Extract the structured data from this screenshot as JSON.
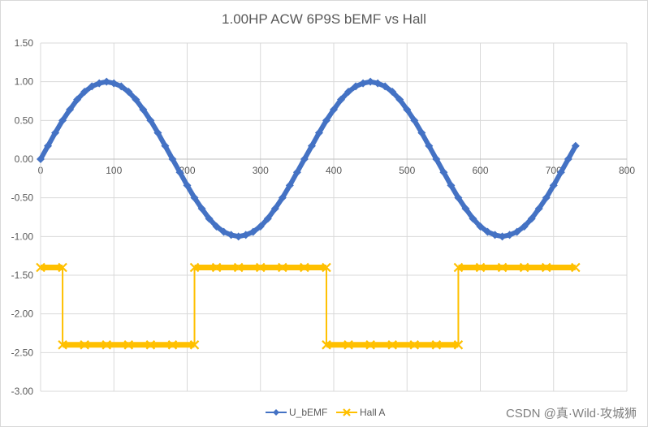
{
  "chart_data": {
    "type": "scatter",
    "title": "1.00HP ACW 6P9S bEMF vs Hall",
    "xlabel": "",
    "ylabel": "",
    "xlim": [
      0,
      800
    ],
    "ylim": [
      -3.0,
      1.5
    ],
    "x_ticks": [
      0,
      100,
      200,
      300,
      400,
      500,
      600,
      700,
      800
    ],
    "y_ticks": [
      1.5,
      1.0,
      0.5,
      0.0,
      -0.5,
      -1.0,
      -1.5,
      -2.0,
      -2.5,
      -3.0
    ],
    "x_tick_labels": [
      "0",
      "100",
      "200",
      "300",
      "400",
      "500",
      "600",
      "700",
      "800"
    ],
    "y_tick_labels": [
      "1.50",
      "1.00",
      "0.50",
      "0.00",
      "-0.50",
      "-1.00",
      "-1.50",
      "-2.00",
      "-2.50",
      "-3.00"
    ],
    "grid": true,
    "legend_position": "bottom",
    "series": [
      {
        "name": "U_bEMF",
        "color": "#4472c4",
        "marker": "diamond",
        "x": [
          0,
          10,
          20,
          30,
          40,
          50,
          60,
          70,
          80,
          90,
          100,
          110,
          120,
          130,
          140,
          150,
          160,
          170,
          180,
          190,
          200,
          210,
          220,
          230,
          240,
          250,
          260,
          270,
          280,
          290,
          300,
          310,
          320,
          330,
          340,
          350,
          360,
          370,
          380,
          390,
          400,
          410,
          420,
          430,
          440,
          450,
          460,
          470,
          480,
          490,
          500,
          510,
          520,
          530,
          540,
          550,
          560,
          570,
          580,
          590,
          600,
          610,
          620,
          630,
          640,
          650,
          660,
          670,
          680,
          690,
          700,
          710,
          720,
          730
        ],
        "y": [
          0.0,
          0.17,
          0.34,
          0.5,
          0.64,
          0.77,
          0.87,
          0.94,
          0.98,
          1.0,
          0.98,
          0.94,
          0.87,
          0.77,
          0.64,
          0.5,
          0.34,
          0.17,
          0.0,
          -0.17,
          -0.34,
          -0.5,
          -0.64,
          -0.77,
          -0.87,
          -0.94,
          -0.98,
          -1.0,
          -0.98,
          -0.94,
          -0.87,
          -0.77,
          -0.64,
          -0.5,
          -0.34,
          -0.17,
          0.0,
          0.17,
          0.34,
          0.5,
          0.64,
          0.77,
          0.87,
          0.94,
          0.98,
          1.0,
          0.98,
          0.94,
          0.87,
          0.77,
          0.64,
          0.5,
          0.34,
          0.17,
          0.0,
          -0.17,
          -0.34,
          -0.5,
          -0.64,
          -0.77,
          -0.87,
          -0.94,
          -0.98,
          -1.0,
          -0.98,
          -0.94,
          -0.87,
          -0.77,
          -0.64,
          -0.5,
          -0.34,
          -0.17,
          0.0,
          0.17
        ]
      },
      {
        "name": "Hall A",
        "color": "#ffc000",
        "marker": "x",
        "x": [
          0,
          30,
          30,
          60,
          90,
          120,
          150,
          180,
          210,
          210,
          240,
          270,
          300,
          330,
          360,
          390,
          390,
          420,
          450,
          480,
          510,
          540,
          570,
          570,
          600,
          630,
          660,
          690,
          730
        ],
        "y": [
          -1.4,
          -1.4,
          -2.4,
          -2.4,
          -2.4,
          -2.4,
          -2.4,
          -2.4,
          -2.4,
          -1.4,
          -1.4,
          -1.4,
          -1.4,
          -1.4,
          -1.4,
          -1.4,
          -2.4,
          -2.4,
          -2.4,
          -2.4,
          -2.4,
          -2.4,
          -2.4,
          -1.4,
          -1.4,
          -1.4,
          -1.4,
          -1.4,
          -1.4
        ]
      }
    ]
  },
  "watermark": "CSDN @真·Wild·攻城狮"
}
